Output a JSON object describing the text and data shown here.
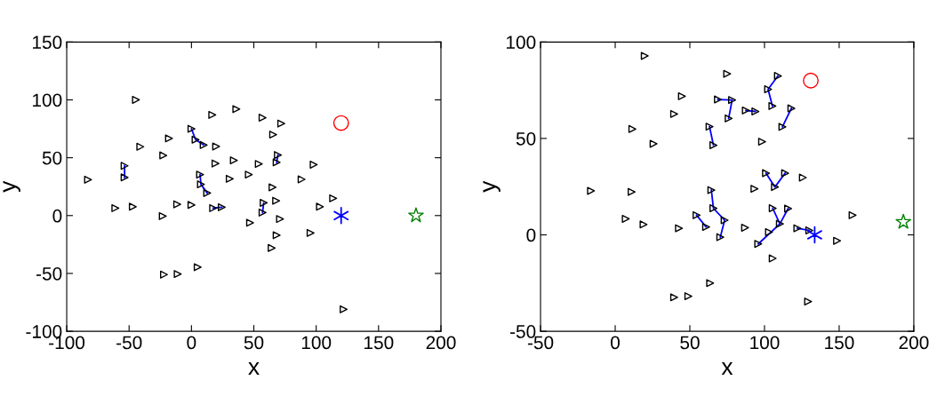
{
  "chart_data": [
    {
      "type": "scatter",
      "xlabel": "x",
      "ylabel": "y",
      "xlim": [
        -100,
        200
      ],
      "ylim": [
        -100,
        150
      ],
      "xticks": [
        -100,
        -50,
        0,
        50,
        100,
        150,
        200
      ],
      "yticks": [
        -100,
        -50,
        0,
        50,
        100,
        150
      ],
      "grid": false,
      "legend": false,
      "series": [
        {
          "type": "line",
          "color": "#0000ff",
          "marker": "none",
          "x": [
            -53.6,
            -53.6,
            null,
            0,
            3.3,
            9.8,
            null,
            6.9,
            7.6,
            12.6,
            null,
            17.4,
            24.3,
            null,
            69.3,
            68.3,
            null,
            57.9,
            57
          ],
          "values": [
            43,
            33,
            null,
            75,
            65.6,
            61,
            null,
            35.4,
            27,
            19.5,
            null,
            6.4,
            7.2,
            null,
            52.3,
            46,
            null,
            11,
            2.6
          ]
        },
        {
          "color": "#000000",
          "marker": "triangle",
          "x": [
            -82.9,
            -44.5,
            -53.6,
            -53.6,
            -61,
            -47,
            -41,
            -23,
            -22.6,
            -18,
            -11.4,
            0,
            0,
            3.3,
            9.8,
            16.7,
            19.8,
            36,
            19.3,
            34,
            6.9,
            7.6,
            12.6,
            17.4,
            24.3,
            30.7,
            46,
            54,
            57,
            65.5,
            72,
            69.3,
            68.3,
            65,
            67.9,
            57.9,
            57,
            47,
            71,
            68.3,
            64.3,
            88.3,
            98,
            95.5,
            103,
            113.6,
            -22,
            -11,
            5,
            122
          ],
          "values": [
            31,
            100,
            43,
            33,
            6.4,
            7.7,
            59.5,
            -0.5,
            52,
            66.7,
            9.7,
            9.2,
            75,
            65.6,
            61,
            87,
            59.7,
            92,
            45,
            47.7,
            35.4,
            27,
            19.5,
            6.4,
            7.2,
            31.8,
            35.4,
            44.6,
            84.6,
            70,
            79.5,
            52.3,
            46,
            24.4,
            12.8,
            11,
            2.6,
            -6.2,
            -3,
            -17,
            -28,
            31.3,
            44,
            -15,
            7.7,
            14.9,
            -51,
            -50.5,
            -44.6,
            -81
          ]
        },
        {
          "color": "#ff0000",
          "marker": "circle",
          "x": [
            120
          ],
          "values": [
            80
          ]
        },
        {
          "color": "#0000ff",
          "marker": "cross",
          "x": [
            120
          ],
          "values": [
            0
          ]
        },
        {
          "color": "#008000",
          "marker": "star",
          "x": [
            180
          ],
          "values": [
            0
          ]
        }
      ]
    },
    {
      "type": "scatter",
      "xlabel": "x",
      "ylabel": "y",
      "xlim": [
        -50,
        200
      ],
      "ylim": [
        -50,
        100
      ],
      "xticks": [
        -50,
        0,
        50,
        100,
        150,
        200
      ],
      "yticks": [
        -50,
        0,
        50,
        100
      ],
      "grid": false,
      "legend": false,
      "series": [
        {
          "type": "line",
          "color": "#0000ff",
          "marker": "none",
          "x": [
            109,
            102.4,
            105.3,
            null,
            68.8,
            78.3,
            76,
            null,
            87.5,
            93.9,
            null,
            118,
            112,
            null,
            63.2,
            65.8,
            null,
            101,
            107,
            113.8,
            null,
            64.4,
            65.8,
            73.3,
            70.4,
            null,
            54.5,
            60.9,
            null,
            105.5,
            110.3,
            115.8,
            null,
            110.3,
            95.8,
            null,
            122,
            130
          ],
          "values": [
            82.4,
            75.5,
            66.8,
            null,
            70.2,
            69.9,
            60.4,
            null,
            64.5,
            64,
            null,
            65.6,
            56,
            null,
            56.1,
            46.5,
            null,
            32,
            24.8,
            32,
            null,
            23.2,
            13.8,
            7.6,
            -1.2,
            null,
            10.2,
            4.1,
            null,
            13.8,
            5.7,
            13.6,
            null,
            5.7,
            -4.7,
            null,
            3.4,
            2.3
          ]
        },
        {
          "color": "#000000",
          "marker": "triangle",
          "x": [
            19.8,
            75,
            109,
            102.4,
            105.3,
            44.7,
            68.8,
            78.3,
            76,
            87.5,
            93.9,
            39.5,
            118,
            112,
            11.5,
            63.2,
            65.8,
            25.7,
            98.4,
            101,
            107,
            113.8,
            125.7,
            -16.2,
            11,
            93.3,
            64.4,
            65.8,
            73.3,
            70.4,
            54.5,
            60.9,
            7.1,
            19,
            42.7,
            87,
            105.5,
            115.8,
            110.3,
            103,
            95.8,
            122,
            130,
            159,
            148.6,
            105.5,
            63.6,
            49,
            39.5,
            129.2
          ],
          "values": [
            92.8,
            83.5,
            82.4,
            75.5,
            66.8,
            71.9,
            70.2,
            69.9,
            60.4,
            64.5,
            64,
            62.7,
            65.6,
            56,
            54.9,
            56.1,
            46.5,
            47.2,
            48.3,
            32,
            24.8,
            32,
            29.7,
            22.8,
            22.3,
            23.9,
            23.2,
            13.8,
            7.6,
            -1.2,
            10.2,
            4.1,
            8.3,
            5.4,
            3.4,
            3.7,
            13.8,
            13.6,
            5.7,
            1.4,
            -4.7,
            3.4,
            2.3,
            10.2,
            -3.1,
            -12.2,
            -25,
            -31.8,
            -32.4,
            -34.6
          ]
        },
        {
          "color": "#ff0000",
          "marker": "circle",
          "x": [
            131
          ],
          "values": [
            80
          ]
        },
        {
          "color": "#0000ff",
          "marker": "cross",
          "x": [
            133.6
          ],
          "values": [
            0
          ]
        },
        {
          "color": "#008000",
          "marker": "star",
          "x": [
            193
          ],
          "values": [
            6.7
          ]
        }
      ]
    }
  ]
}
